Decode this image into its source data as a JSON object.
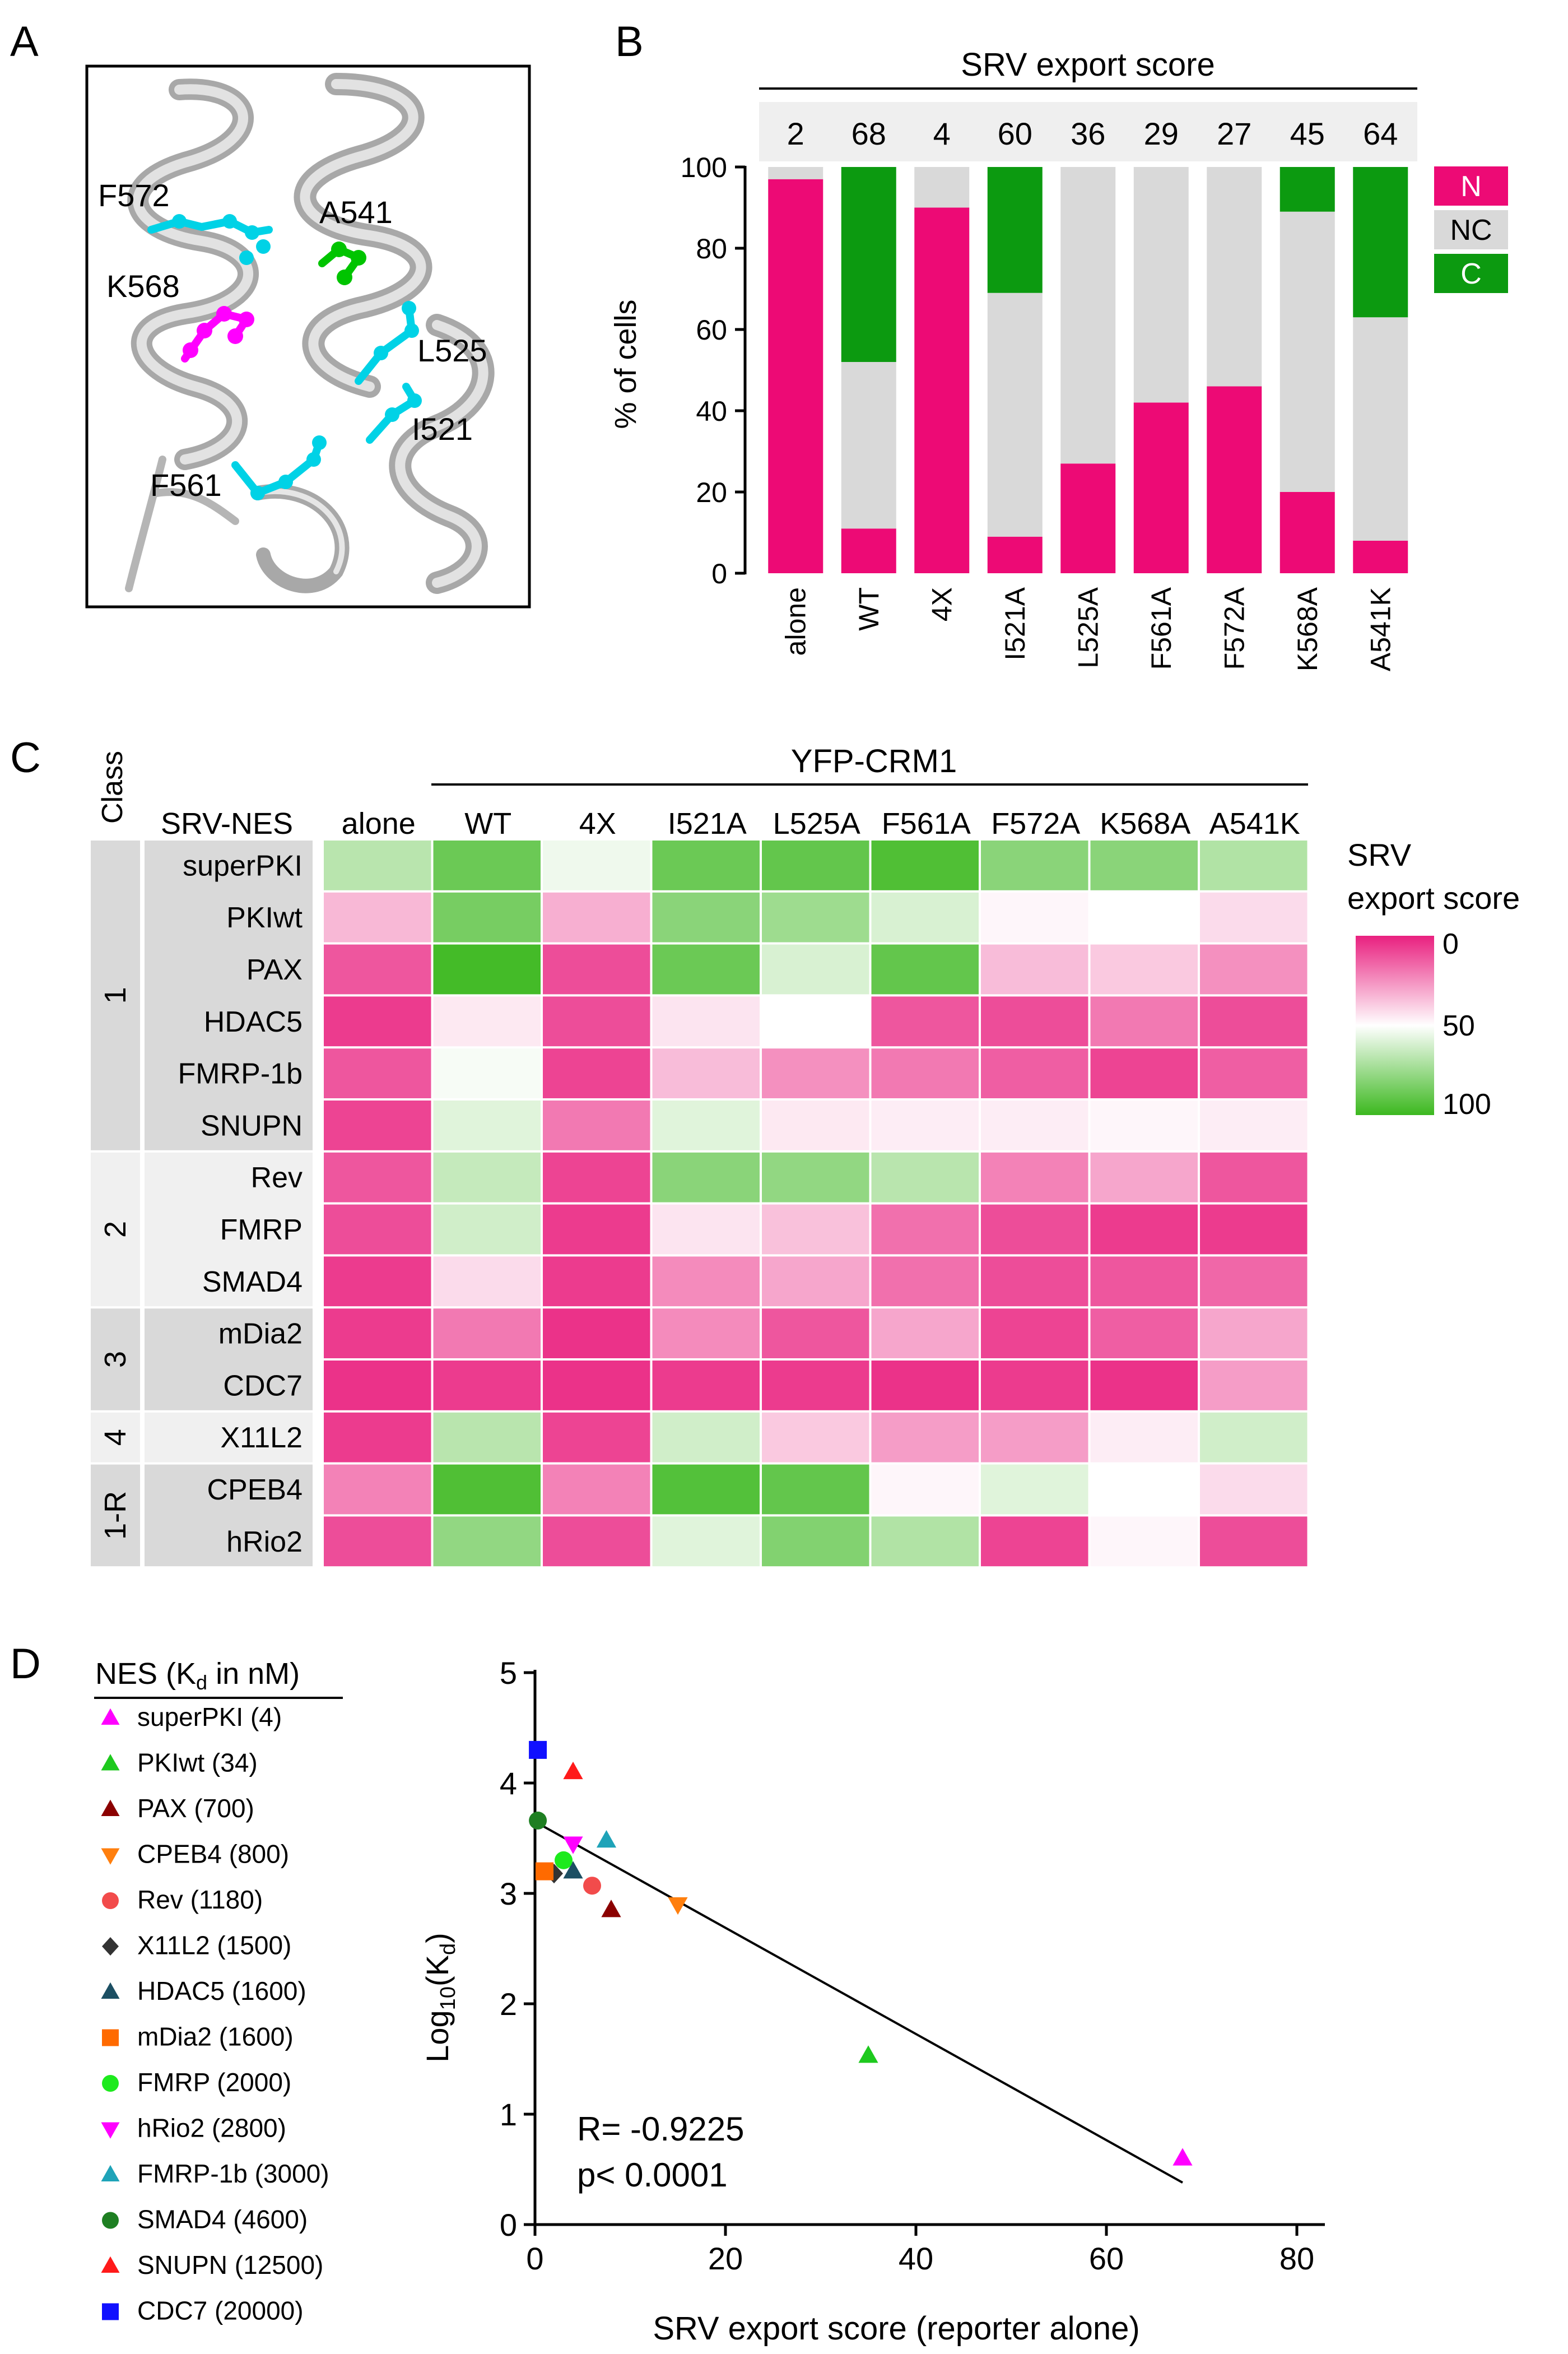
{
  "panels": {
    "A": {
      "letter": "A",
      "residues": [
        {
          "name": "F572",
          "color": "#00d2e6"
        },
        {
          "name": "A541",
          "color": "#00c400"
        },
        {
          "name": "K568",
          "color": "#ff00ff"
        },
        {
          "name": "L525",
          "color": "#00d2e6"
        },
        {
          "name": "I521",
          "color": "#00d2e6"
        },
        {
          "name": "F561",
          "color": "#00d2e6"
        }
      ]
    },
    "B": {
      "letter": "B",
      "header": "SRV export score",
      "ylabel": "% of cells",
      "legend": [
        {
          "key": "N",
          "color": "#ed0a75"
        },
        {
          "key": "NC",
          "color": "#d9d9d9"
        },
        {
          "key": "C",
          "color": "#0c9a10"
        }
      ]
    },
    "C": {
      "letter": "C",
      "class_header": "Class",
      "row_header": "SRV-NES",
      "group_header": "YFP-CRM1",
      "scale_title_1": "SRV",
      "scale_title_2": "export score",
      "scale_ticks": [
        "0",
        "50",
        "100"
      ]
    },
    "D": {
      "letter": "D",
      "legend_title": "NES (K",
      "legend_title_sub": "d",
      "legend_title_end": " in nM)",
      "ylabel_main": "Log",
      "ylabel_sub": "10",
      "ylabel_mid": "(K",
      "ylabel_sub2": "d",
      "ylabel_end": ")",
      "annotation_r": "R= -0.9225",
      "annotation_p": "p< 0.0001",
      "legend": [
        {
          "label": "superPKI (4)",
          "color": "#ff00ff",
          "marker": "triangle-up"
        },
        {
          "label": "PKIwt (34)",
          "color": "#1ec91e",
          "marker": "triangle-up"
        },
        {
          "label": "PAX (700)",
          "color": "#8b0000",
          "marker": "triangle-up"
        },
        {
          "label": "CPEB4 (800)",
          "color": "#ff7f0e",
          "marker": "triangle-down"
        },
        {
          "label": "Rev (1180)",
          "color": "#f24b4b",
          "marker": "circle"
        },
        {
          "label": "X11L2 (1500)",
          "color": "#333333",
          "marker": "diamond"
        },
        {
          "label": "HDAC5 (1600)",
          "color": "#1c4f63",
          "marker": "triangle-up"
        },
        {
          "label": "mDia2 (1600)",
          "color": "#ff6a00",
          "marker": "square"
        },
        {
          "label": "FMRP (2000)",
          "color": "#1dea1d",
          "marker": "circle"
        },
        {
          "label": "hRio2 (2800)",
          "color": "#ff00ff",
          "marker": "triangle-down"
        },
        {
          "label": "FMRP-1b (3000)",
          "color": "#1fa3b8",
          "marker": "triangle-up"
        },
        {
          "label": "SMAD4 (4600)",
          "color": "#1e7f22",
          "marker": "circle"
        },
        {
          "label": "SNUPN (12500)",
          "color": "#ff1a1a",
          "marker": "triangle-up"
        },
        {
          "label": "CDC7 (20000)",
          "color": "#1010ff",
          "marker": "square"
        }
      ]
    }
  },
  "chart_data": [
    {
      "panel": "B",
      "type": "bar",
      "stacked": true,
      "categories": [
        "alone",
        "WT",
        "4X",
        "I521A",
        "L525A",
        "F561A",
        "F572A",
        "K568A",
        "A541K"
      ],
      "scores": [
        "2",
        "68",
        "4",
        "60",
        "36",
        "29",
        "27",
        "45",
        "64"
      ],
      "series": [
        {
          "name": "N",
          "values": [
            97,
            11,
            90,
            9,
            27,
            42,
            46,
            20,
            8
          ]
        },
        {
          "name": "NC",
          "values": [
            3,
            41,
            10,
            60,
            73,
            58,
            54,
            69,
            55
          ]
        },
        {
          "name": "C",
          "values": [
            0,
            48,
            0,
            31,
            0,
            0,
            0,
            11,
            37
          ]
        }
      ],
      "ylabel": "% of cells",
      "ylim": [
        0,
        100
      ],
      "yticks": [
        "0",
        "20",
        "40",
        "60",
        "80",
        "100"
      ]
    },
    {
      "panel": "C",
      "type": "heatmap",
      "columns": [
        "alone",
        "WT",
        "4X",
        "I521A",
        "L525A",
        "F561A",
        "F572A",
        "K568A",
        "A541K"
      ],
      "classes": [
        {
          "label": "1",
          "rows": 6
        },
        {
          "label": "2",
          "rows": 3
        },
        {
          "label": "3",
          "rows": 2
        },
        {
          "label": "4",
          "rows": 1
        },
        {
          "label": "1-R",
          "rows": 2
        }
      ],
      "rows": [
        "superPKI",
        "PKIwt",
        "PAX",
        "HDAC5",
        "FMRP-1b",
        "SNUPN",
        "Rev",
        "FMRP",
        "SMAD4",
        "mDia2",
        "CDC7",
        "X11L2",
        "CPEB4",
        "hRio2"
      ],
      "values": [
        [
          68,
          88,
          54,
          88,
          90,
          95,
          80,
          80,
          70
        ],
        [
          34,
          85,
          32,
          80,
          75,
          60,
          48,
          50,
          42
        ],
        [
          12,
          98,
          10,
          88,
          60,
          90,
          35,
          38,
          25
        ],
        [
          6,
          45,
          10,
          44,
          50,
          12,
          10,
          20,
          10
        ],
        [
          12,
          52,
          8,
          35,
          25,
          20,
          14,
          8,
          14
        ],
        [
          8,
          58,
          20,
          58,
          45,
          46,
          46,
          48,
          46
        ],
        [
          12,
          65,
          8,
          80,
          78,
          68,
          22,
          30,
          12
        ],
        [
          10,
          62,
          6,
          44,
          36,
          18,
          10,
          6,
          6
        ],
        [
          6,
          42,
          6,
          24,
          30,
          18,
          10,
          12,
          16
        ],
        [
          6,
          20,
          4,
          24,
          12,
          30,
          8,
          14,
          30
        ],
        [
          4,
          6,
          4,
          6,
          6,
          4,
          6,
          4,
          28
        ],
        [
          6,
          68,
          8,
          62,
          38,
          28,
          28,
          46,
          62
        ],
        [
          22,
          95,
          22,
          94,
          90,
          48,
          58,
          50,
          42
        ],
        [
          10,
          78,
          10,
          58,
          82,
          70,
          8,
          48,
          10
        ]
      ],
      "scale": [
        0,
        100
      ]
    },
    {
      "panel": "D",
      "type": "scatter",
      "xlabel": "SRV export score (reporter alone)",
      "xlim": [
        0,
        80
      ],
      "ylim": [
        0,
        5
      ],
      "xticks": [
        "0",
        "20",
        "40",
        "60",
        "80"
      ],
      "yticks": [
        "0",
        "1",
        "2",
        "3",
        "4",
        "5"
      ],
      "points": [
        {
          "name": "superPKI",
          "x": 68,
          "y": 0.6
        },
        {
          "name": "PKIwt",
          "x": 35,
          "y": 1.53
        },
        {
          "name": "PAX",
          "x": 8,
          "y": 2.85
        },
        {
          "name": "CPEB4",
          "x": 15,
          "y": 2.9
        },
        {
          "name": "Rev",
          "x": 6,
          "y": 3.07
        },
        {
          "name": "X11L2",
          "x": 2,
          "y": 3.18
        },
        {
          "name": "HDAC5",
          "x": 4,
          "y": 3.2
        },
        {
          "name": "mDia2",
          "x": 1,
          "y": 3.2
        },
        {
          "name": "FMRP",
          "x": 3,
          "y": 3.3
        },
        {
          "name": "hRio2",
          "x": 4,
          "y": 3.45
        },
        {
          "name": "FMRP-1b",
          "x": 7.5,
          "y": 3.48
        },
        {
          "name": "SMAD4",
          "x": 0.3,
          "y": 3.66
        },
        {
          "name": "SNUPN",
          "x": 4,
          "y": 4.1
        },
        {
          "name": "CDC7",
          "x": 0.3,
          "y": 4.3
        }
      ],
      "fit_line": {
        "x": [
          0,
          68
        ],
        "y": [
          3.65,
          0.38
        ]
      }
    }
  ]
}
